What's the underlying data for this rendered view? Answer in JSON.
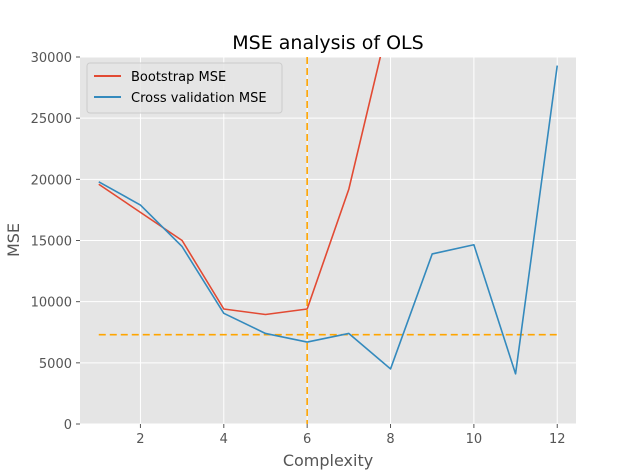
{
  "chart_data": {
    "type": "line",
    "title": "MSE analysis of OLS",
    "xlabel": "Complexity",
    "ylabel": "MSE",
    "xlim": [
      0.55,
      12.45
    ],
    "ylim": [
      0,
      30000
    ],
    "xticks": [
      2,
      4,
      6,
      8,
      10,
      12
    ],
    "yticks": [
      0,
      5000,
      10000,
      15000,
      20000,
      25000,
      30000
    ],
    "grid": true,
    "legend_position": "top-left",
    "series": [
      {
        "name": "Bootstrap MSE",
        "color": "#e24a33",
        "x": [
          1,
          2,
          3,
          4,
          5,
          6,
          7,
          8
        ],
        "y": [
          19600,
          17300,
          15000,
          9400,
          8950,
          9400,
          19200,
          33500
        ]
      },
      {
        "name": "Cross validation MSE",
        "color": "#348abd",
        "x": [
          1,
          2,
          3,
          4,
          5,
          6,
          7,
          8,
          9,
          10,
          11,
          12
        ],
        "y": [
          19800,
          17900,
          14500,
          9050,
          7400,
          6700,
          7400,
          4500,
          13900,
          14650,
          4100,
          29300
        ]
      }
    ],
    "reference_lines": [
      {
        "orientation": "vertical",
        "x": 6,
        "color": "#ffa500",
        "style": "dashed"
      },
      {
        "orientation": "horizontal",
        "y": 7300,
        "x_range": [
          1,
          12
        ],
        "color": "#ffa500",
        "style": "dashed"
      }
    ]
  },
  "colors": {
    "plot_background": "#e5e5e5",
    "grid": "#ffffff"
  }
}
